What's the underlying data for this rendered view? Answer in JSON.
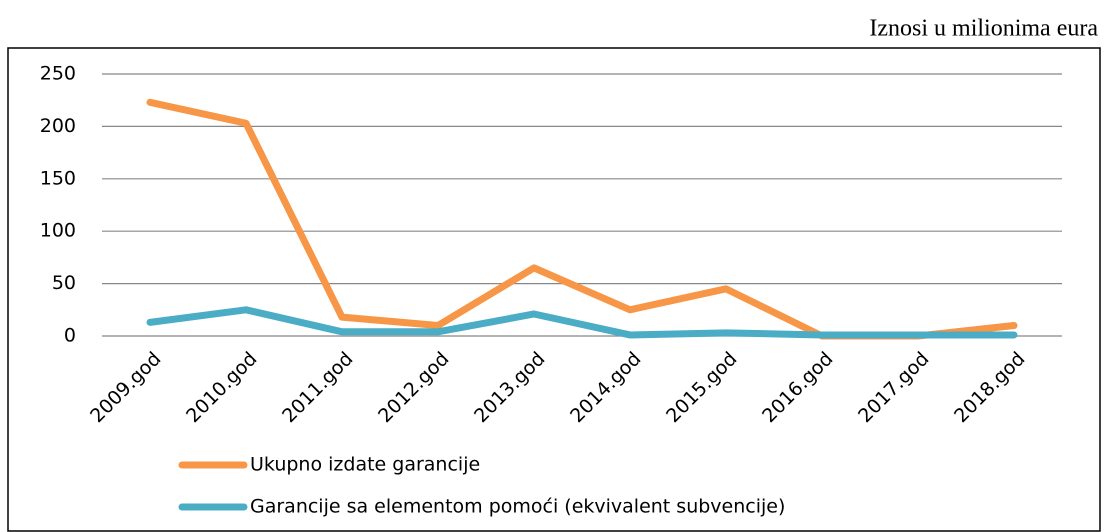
{
  "note": "Iznosi u milionima eura",
  "chart_data": {
    "type": "line",
    "categories": [
      "2009.god",
      "2010.god",
      "2011.god",
      "2012.god",
      "2013.god",
      "2014.god",
      "2015.god",
      "2016.god",
      "2017.god",
      "2018.god"
    ],
    "series": [
      {
        "name": "Ukupno izdate garancije",
        "color": "#f79646",
        "values": [
          223,
          203,
          18,
          10,
          65,
          25,
          45,
          0,
          0,
          10
        ]
      },
      {
        "name": "Garancije sa elementom pomoći (ekvivalent subvencije)",
        "color": "#4bacc6",
        "values": [
          13,
          25,
          4,
          4,
          21,
          1,
          3,
          1,
          1,
          1
        ]
      }
    ],
    "ylim": [
      0,
      250
    ],
    "yticks": [
      0,
      50,
      100,
      150,
      200,
      250
    ],
    "grid": true,
    "legend": "bottom"
  }
}
